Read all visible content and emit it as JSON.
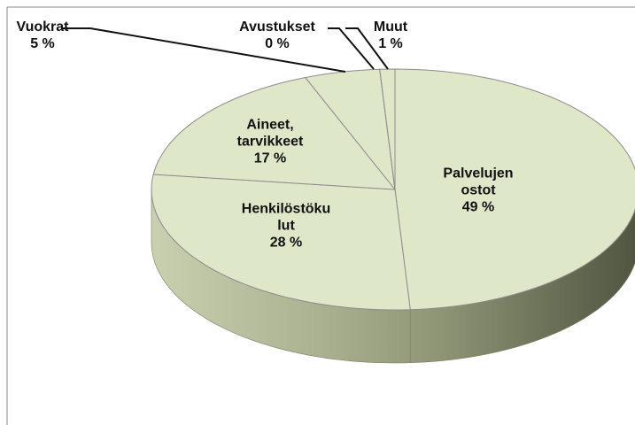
{
  "chart_data": {
    "type": "pie",
    "categories": [
      "Palvelujen\nostot",
      "Henkilöstöku\nlut",
      "Aineet,\ntarvikkeet",
      "Vuokrat",
      "Avustukset",
      "Muut"
    ],
    "values": [
      49,
      28,
      17,
      5,
      0,
      1
    ],
    "value_labels": [
      "49 %",
      "28 %",
      "17 %",
      "5 %",
      "0 %",
      "1 %"
    ],
    "color": "#dfe7c9"
  }
}
